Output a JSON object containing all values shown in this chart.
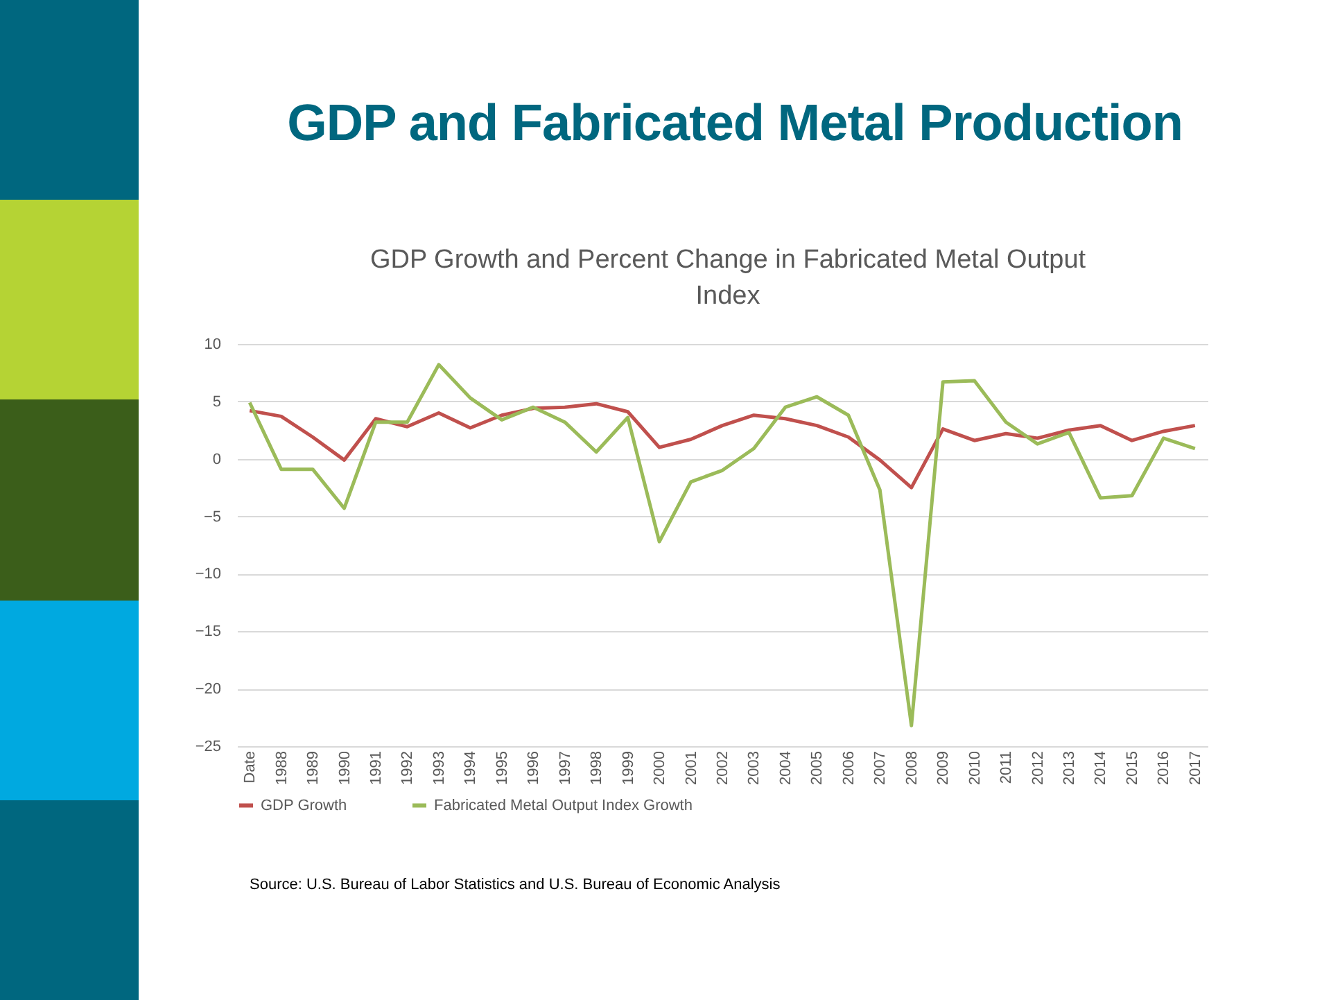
{
  "chart_data": {
    "type": "line",
    "title": "GDP and Fabricated Metal Production",
    "subtitle": "GDP Growth and Percent Change in Fabricated Metal Output Index",
    "categories": [
      "Date",
      "1988",
      "1989",
      "1990",
      "1991",
      "1992",
      "1993",
      "1994",
      "1995",
      "1996",
      "1997",
      "1998",
      "1999",
      "2000",
      "2001",
      "2002",
      "2003",
      "2004",
      "2005",
      "2006",
      "2007",
      "2008",
      "2009",
      "2010",
      "2011",
      "2012",
      "2013",
      "2014",
      "2015",
      "2016",
      "2017"
    ],
    "series": [
      {
        "name": "GDP Growth",
        "color": "#c0504d",
        "values": [
          4.2,
          3.7,
          1.9,
          -0.1,
          3.5,
          2.8,
          4.0,
          2.7,
          3.8,
          4.4,
          4.5,
          4.8,
          4.1,
          1.0,
          1.7,
          2.9,
          3.8,
          3.5,
          2.9,
          1.9,
          -0.1,
          -2.5,
          2.6,
          1.6,
          2.2,
          1.8,
          2.5,
          2.9,
          1.6,
          2.4,
          2.9
        ]
      },
      {
        "name": "Fabricated Metal Output Index Growth",
        "color": "#9bbb59",
        "values": [
          4.9,
          -0.9,
          -0.9,
          -4.3,
          3.2,
          3.2,
          8.2,
          5.3,
          3.4,
          4.5,
          3.2,
          0.6,
          3.6,
          -7.2,
          -2.0,
          -1.0,
          0.9,
          4.5,
          5.4,
          3.8,
          -2.7,
          -23.2,
          6.7,
          6.8,
          3.2,
          1.3,
          2.3,
          -3.4,
          -3.2,
          1.8,
          0.9
        ]
      }
    ],
    "ylim": [
      -25,
      10
    ],
    "yticks": [
      -25,
      -20,
      -15,
      -10,
      -5,
      0,
      5,
      10
    ],
    "grid": "y",
    "legend": "bottom",
    "marker": "none",
    "line_style": "solid",
    "annotations": [
      "Source: U.S. Bureau of Labor Statistics and U.S. Bureau of Economic Analysis"
    ]
  }
}
